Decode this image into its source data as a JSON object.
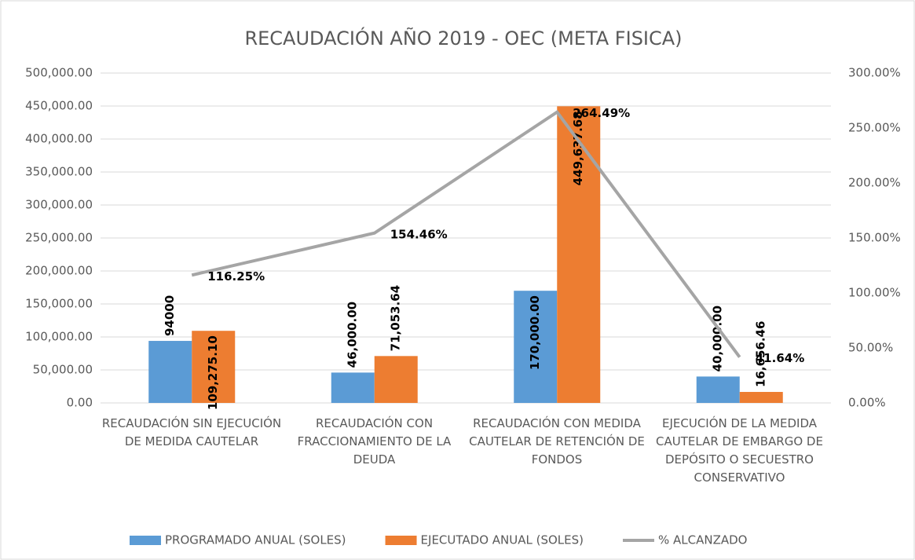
{
  "chart_data": {
    "type": "bar_line",
    "title": "RECAUDACIÓN AÑO 2019 - OEC (META FISICA)",
    "categories": [
      "RECAUDACIÓN SIN EJECUCIÓN DE MEDIDA CAUTELAR",
      "RECAUDACIÓN CON FRACCIONAMIENTO DE LA DEUDA",
      "RECAUDACIÓN CON MEDIDA CAUTELAR DE RETENCIÓN DE FONDOS",
      "EJECUCIÓN DE LA MEDIDA CAUTELAR DE EMBARGO DE DEPÓSITO O SECUESTRO CONSERVATIVO"
    ],
    "series": [
      {
        "name": "PROGRAMADO ANUAL (SOLES)",
        "color": "#5b9bd5",
        "kind": "bar",
        "values": [
          94000,
          46000,
          170000,
          40000
        ],
        "value_labels": [
          "94000",
          "46,000.00",
          "170,000.00",
          "40,000.00"
        ]
      },
      {
        "name": "EJECUTADO ANUAL (SOLES)",
        "color": "#ed7d31",
        "kind": "bar",
        "values": [
          109275.1,
          71053.64,
          449637.68,
          16656.46
        ],
        "value_labels": [
          "109,275.10",
          "71,053.64",
          "449,637.68",
          "16,656.46"
        ]
      },
      {
        "name": "% ALCANZADO",
        "color": "#a5a5a5",
        "kind": "line",
        "axis": "y2",
        "values": [
          116.25,
          154.46,
          264.49,
          41.64
        ],
        "value_labels": [
          "116.25%",
          "154.46%",
          "264.49%",
          "41.64%"
        ]
      }
    ],
    "ylim": [
      0,
      500000
    ],
    "yticks": [
      {
        "value": 0,
        "label": "0.00"
      },
      {
        "value": 50000,
        "label": "50,000.00"
      },
      {
        "value": 100000,
        "label": "100,000.00"
      },
      {
        "value": 150000,
        "label": "150,000.00"
      },
      {
        "value": 200000,
        "label": "200,000.00"
      },
      {
        "value": 250000,
        "label": "250,000.00"
      },
      {
        "value": 300000,
        "label": "300,000.00"
      },
      {
        "value": 350000,
        "label": "350,000.00"
      },
      {
        "value": 400000,
        "label": "400,000.00"
      },
      {
        "value": 450000,
        "label": "450,000.00"
      },
      {
        "value": 500000,
        "label": "500,000.00"
      }
    ],
    "y2lim": [
      0,
      300
    ],
    "y2ticks": [
      {
        "value": 0,
        "label": "0.00%"
      },
      {
        "value": 50,
        "label": "50.00%"
      },
      {
        "value": 100,
        "label": "100.00%"
      },
      {
        "value": 150,
        "label": "150.00%"
      },
      {
        "value": 200,
        "label": "200.00%"
      },
      {
        "value": 250,
        "label": "250.00%"
      },
      {
        "value": 300,
        "label": "300.00%"
      }
    ],
    "grid": true,
    "legend": "bottom"
  }
}
